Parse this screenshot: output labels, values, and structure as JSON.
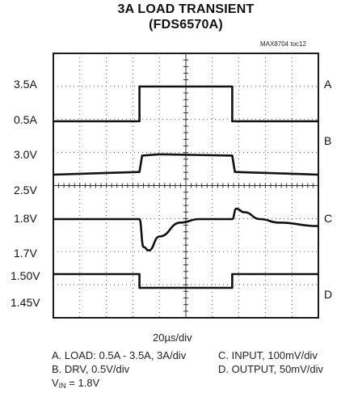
{
  "chart_data": {
    "type": "line",
    "title": "3A LOAD TRANSIENT",
    "subtitle": "(FDS6570A)",
    "figure_tag": "MAX8704 toc12",
    "x_scale": "20µs/div",
    "grid": true,
    "x_divisions": 10,
    "y_divisions": 8,
    "y_tick_labels": [
      "3.5A",
      "0.5A",
      "3.0V",
      "2.5V",
      "1.8V",
      "1.7V",
      "1.50V",
      "1.45V"
    ],
    "series": [
      {
        "name": "A",
        "x": [
          0,
          3.25,
          3.25,
          6.75,
          6.75,
          10
        ],
        "y": [
          0.5,
          0.5,
          3.5,
          3.5,
          0.5,
          0.5
        ]
      },
      {
        "name": "B",
        "x": [
          0,
          3.25,
          3.35,
          4.0,
          6.75,
          6.85,
          10
        ],
        "y": [
          2.72,
          2.74,
          2.86,
          2.87,
          2.86,
          2.74,
          2.72
        ]
      },
      {
        "name": "C",
        "x": [
          0,
          3.25,
          3.4,
          3.6,
          4.0,
          4.8,
          5.5,
          6.75,
          6.9,
          7.2,
          7.8,
          8.5,
          10
        ],
        "y": [
          1.8,
          1.8,
          1.72,
          1.71,
          1.75,
          1.79,
          1.8,
          1.8,
          1.83,
          1.82,
          1.8,
          1.79,
          1.78
        ]
      },
      {
        "name": "D",
        "x": [
          0,
          3.25,
          3.25,
          6.75,
          6.75,
          10
        ],
        "y": [
          1.5,
          1.5,
          1.45,
          1.45,
          1.5,
          1.5
        ]
      }
    ],
    "channel_labels": [
      "A",
      "B",
      "C",
      "D"
    ],
    "notes": {
      "a": "A. LOAD: 0.5A - 3.5A, 3A/div",
      "b": "B. DRV, 0.5V/div",
      "c": "C. INPUT, 100mV/div",
      "d": "D. OUTPUT, 50mV/div",
      "vin_prefix": "V",
      "vin_sub": "IN",
      "vin_rest": " = 1.8V"
    }
  }
}
